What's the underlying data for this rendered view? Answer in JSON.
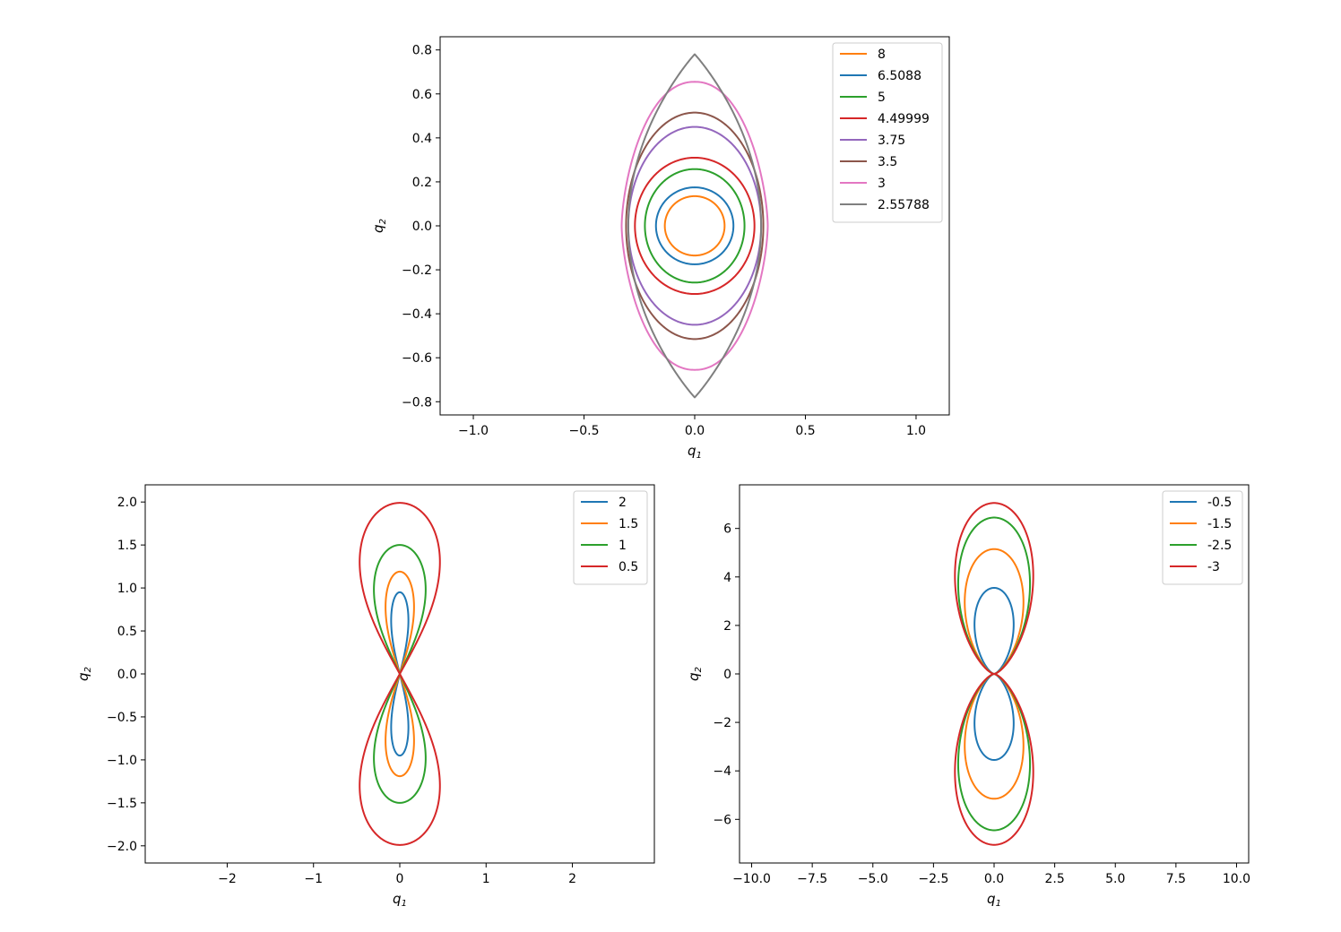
{
  "chart_data": [
    {
      "type": "line",
      "title": "",
      "xlabel_base": "q",
      "xlabel_sub": "1",
      "ylabel_base": "q",
      "ylabel_sub": "2",
      "xlim": [
        -1.15,
        1.15
      ],
      "ylim": [
        -0.86,
        0.86
      ],
      "xticks": [
        -1.0,
        -0.5,
        0.0,
        0.5,
        1.0
      ],
      "xtick_labels": [
        "−1.0",
        "−0.5",
        "0.0",
        "0.5",
        "1.0"
      ],
      "yticks": [
        0.8,
        0.6,
        0.4,
        0.2,
        0.0,
        -0.2,
        -0.4,
        -0.6,
        -0.8
      ],
      "ytick_labels": [
        "0.8",
        "0.6",
        "0.4",
        "0.2",
        "0.0",
        "−0.2",
        "−0.4",
        "−0.6",
        "−0.8"
      ],
      "grid": false,
      "legend_position": "top-right",
      "series": [
        {
          "name": "8",
          "color": "#ff7f0e",
          "shape": "ellipse",
          "rx": 0.135,
          "ry": 0.135
        },
        {
          "name": "6.5088",
          "color": "#1f77b4",
          "shape": "ellipse",
          "rx": 0.175,
          "ry": 0.175
        },
        {
          "name": "5",
          "color": "#2ca02c",
          "shape": "ellipse",
          "rx": 0.225,
          "ry": 0.258
        },
        {
          "name": "4.49999",
          "color": "#d62728",
          "shape": "ellipse",
          "rx": 0.27,
          "ry": 0.31
        },
        {
          "name": "3.75",
          "color": "#9467bd",
          "shape": "ellipse",
          "rx": 0.3,
          "ry": 0.45
        },
        {
          "name": "3.5",
          "color": "#8c564b",
          "shape": "ellipse",
          "rx": 0.31,
          "ry": 0.515
        },
        {
          "name": "3",
          "color": "#e377c2",
          "shape": "lens",
          "rx": 0.33,
          "ry": 0.655
        },
        {
          "name": "2.55788",
          "color": "#7f7f7f",
          "shape": "cusp",
          "rx": 0.3,
          "ry": 0.78
        }
      ]
    },
    {
      "type": "line",
      "title": "",
      "xlabel_base": "q",
      "xlabel_sub": "1",
      "ylabel_base": "q",
      "ylabel_sub": "2",
      "xlim": [
        -2.95,
        2.95
      ],
      "ylim": [
        -2.2,
        2.2
      ],
      "xticks": [
        -2,
        -1,
        0,
        1,
        2
      ],
      "xtick_labels": [
        "−2",
        "−1",
        "0",
        "1",
        "2"
      ],
      "yticks": [
        2.0,
        1.5,
        1.0,
        0.5,
        0.0,
        -0.5,
        -1.0,
        -1.5,
        -2.0
      ],
      "ytick_labels": [
        "2.0",
        "1.5",
        "1.0",
        "0.5",
        "0.0",
        "−0.5",
        "−1.0",
        "−1.5",
        "−2.0"
      ],
      "grid": false,
      "legend_position": "top-right",
      "series": [
        {
          "name": "2",
          "color": "#1f77b4",
          "shape": "figure8",
          "amp": 0.2,
          "height": 0.95
        },
        {
          "name": "1.5",
          "color": "#ff7f0e",
          "shape": "figure8",
          "amp": 0.33,
          "height": 1.19
        },
        {
          "name": "1",
          "color": "#2ca02c",
          "shape": "figure8",
          "amp": 0.6,
          "height": 1.5
        },
        {
          "name": "0.5",
          "color": "#d62728",
          "shape": "figure8",
          "amp": 0.93,
          "height": 1.99
        }
      ]
    },
    {
      "type": "line",
      "title": "",
      "xlabel_base": "q",
      "xlabel_sub": "1",
      "ylabel_base": "q",
      "ylabel_sub": "2",
      "xlim": [
        -10.5,
        10.5
      ],
      "ylim": [
        -7.8,
        7.8
      ],
      "xticks": [
        -10.0,
        -7.5,
        -5.0,
        -2.5,
        0.0,
        2.5,
        5.0,
        7.5,
        10.0
      ],
      "xtick_labels": [
        "−10.0",
        "−7.5",
        "−5.0",
        "−2.5",
        "0.0",
        "2.5",
        "5.0",
        "7.5",
        "10.0"
      ],
      "yticks": [
        6,
        4,
        2,
        0,
        -2,
        -4,
        -6
      ],
      "ytick_labels": [
        "6",
        "4",
        "2",
        "0",
        "−2",
        "−4",
        "−6"
      ],
      "grid": false,
      "legend_position": "top-right",
      "series": [
        {
          "name": "-0.5",
          "color": "#1f77b4",
          "shape": "twin",
          "width": 0.9,
          "height": 3.55
        },
        {
          "name": "-1.5",
          "color": "#ff7f0e",
          "shape": "twin",
          "width": 1.35,
          "height": 5.15
        },
        {
          "name": "-2.5",
          "color": "#2ca02c",
          "shape": "twin",
          "width": 1.65,
          "height": 6.45
        },
        {
          "name": "-3",
          "color": "#d62728",
          "shape": "twin",
          "width": 1.8,
          "height": 7.05
        }
      ]
    }
  ]
}
